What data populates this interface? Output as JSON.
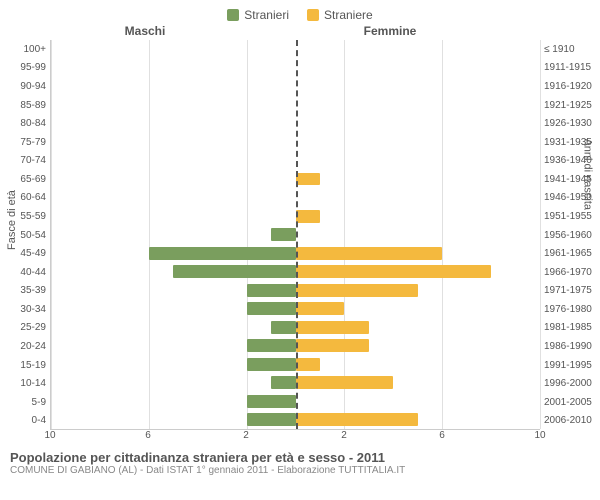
{
  "legend": {
    "male_label": "Stranieri",
    "female_label": "Straniere"
  },
  "headers": {
    "male": "Maschi",
    "female": "Femmine"
  },
  "axis_titles": {
    "left": "Fasce di età",
    "right": "Anni di nascita"
  },
  "chart": {
    "type": "population-pyramid",
    "max_value": 10,
    "xticks": [
      10,
      6,
      2,
      2,
      6,
      10
    ],
    "colors": {
      "male": "#7a9e5e",
      "female": "#f4b93e",
      "background": "#ffffff",
      "grid": "#e0e0e0",
      "centerline": "#555555",
      "text": "#555555"
    },
    "bar_width": 0.7,
    "label_fontsize": 10,
    "title_fontsize": 13,
    "rows": [
      {
        "age": "100+",
        "birth": "≤ 1910",
        "m": 0,
        "f": 0
      },
      {
        "age": "95-99",
        "birth": "1911-1915",
        "m": 0,
        "f": 0
      },
      {
        "age": "90-94",
        "birth": "1916-1920",
        "m": 0,
        "f": 0
      },
      {
        "age": "85-89",
        "birth": "1921-1925",
        "m": 0,
        "f": 0
      },
      {
        "age": "80-84",
        "birth": "1926-1930",
        "m": 0,
        "f": 0
      },
      {
        "age": "75-79",
        "birth": "1931-1935",
        "m": 0,
        "f": 0
      },
      {
        "age": "70-74",
        "birth": "1936-1940",
        "m": 0,
        "f": 0
      },
      {
        "age": "65-69",
        "birth": "1941-1945",
        "m": 0,
        "f": 1
      },
      {
        "age": "60-64",
        "birth": "1946-1950",
        "m": 0,
        "f": 0
      },
      {
        "age": "55-59",
        "birth": "1951-1955",
        "m": 0,
        "f": 1
      },
      {
        "age": "50-54",
        "birth": "1956-1960",
        "m": 1,
        "f": 0
      },
      {
        "age": "45-49",
        "birth": "1961-1965",
        "m": 6,
        "f": 6
      },
      {
        "age": "40-44",
        "birth": "1966-1970",
        "m": 5,
        "f": 8
      },
      {
        "age": "35-39",
        "birth": "1971-1975",
        "m": 2,
        "f": 5
      },
      {
        "age": "30-34",
        "birth": "1976-1980",
        "m": 2,
        "f": 2
      },
      {
        "age": "25-29",
        "birth": "1981-1985",
        "m": 1,
        "f": 3
      },
      {
        "age": "20-24",
        "birth": "1986-1990",
        "m": 2,
        "f": 3
      },
      {
        "age": "15-19",
        "birth": "1991-1995",
        "m": 2,
        "f": 1
      },
      {
        "age": "10-14",
        "birth": "1996-2000",
        "m": 1,
        "f": 4
      },
      {
        "age": "5-9",
        "birth": "2001-2005",
        "m": 2,
        "f": 0
      },
      {
        "age": "0-4",
        "birth": "2006-2010",
        "m": 2,
        "f": 5
      }
    ]
  },
  "footer": {
    "title": "Popolazione per cittadinanza straniera per età e sesso - 2011",
    "sub": "COMUNE DI GABIANO (AL) - Dati ISTAT 1° gennaio 2011 - Elaborazione TUTTITALIA.IT"
  }
}
